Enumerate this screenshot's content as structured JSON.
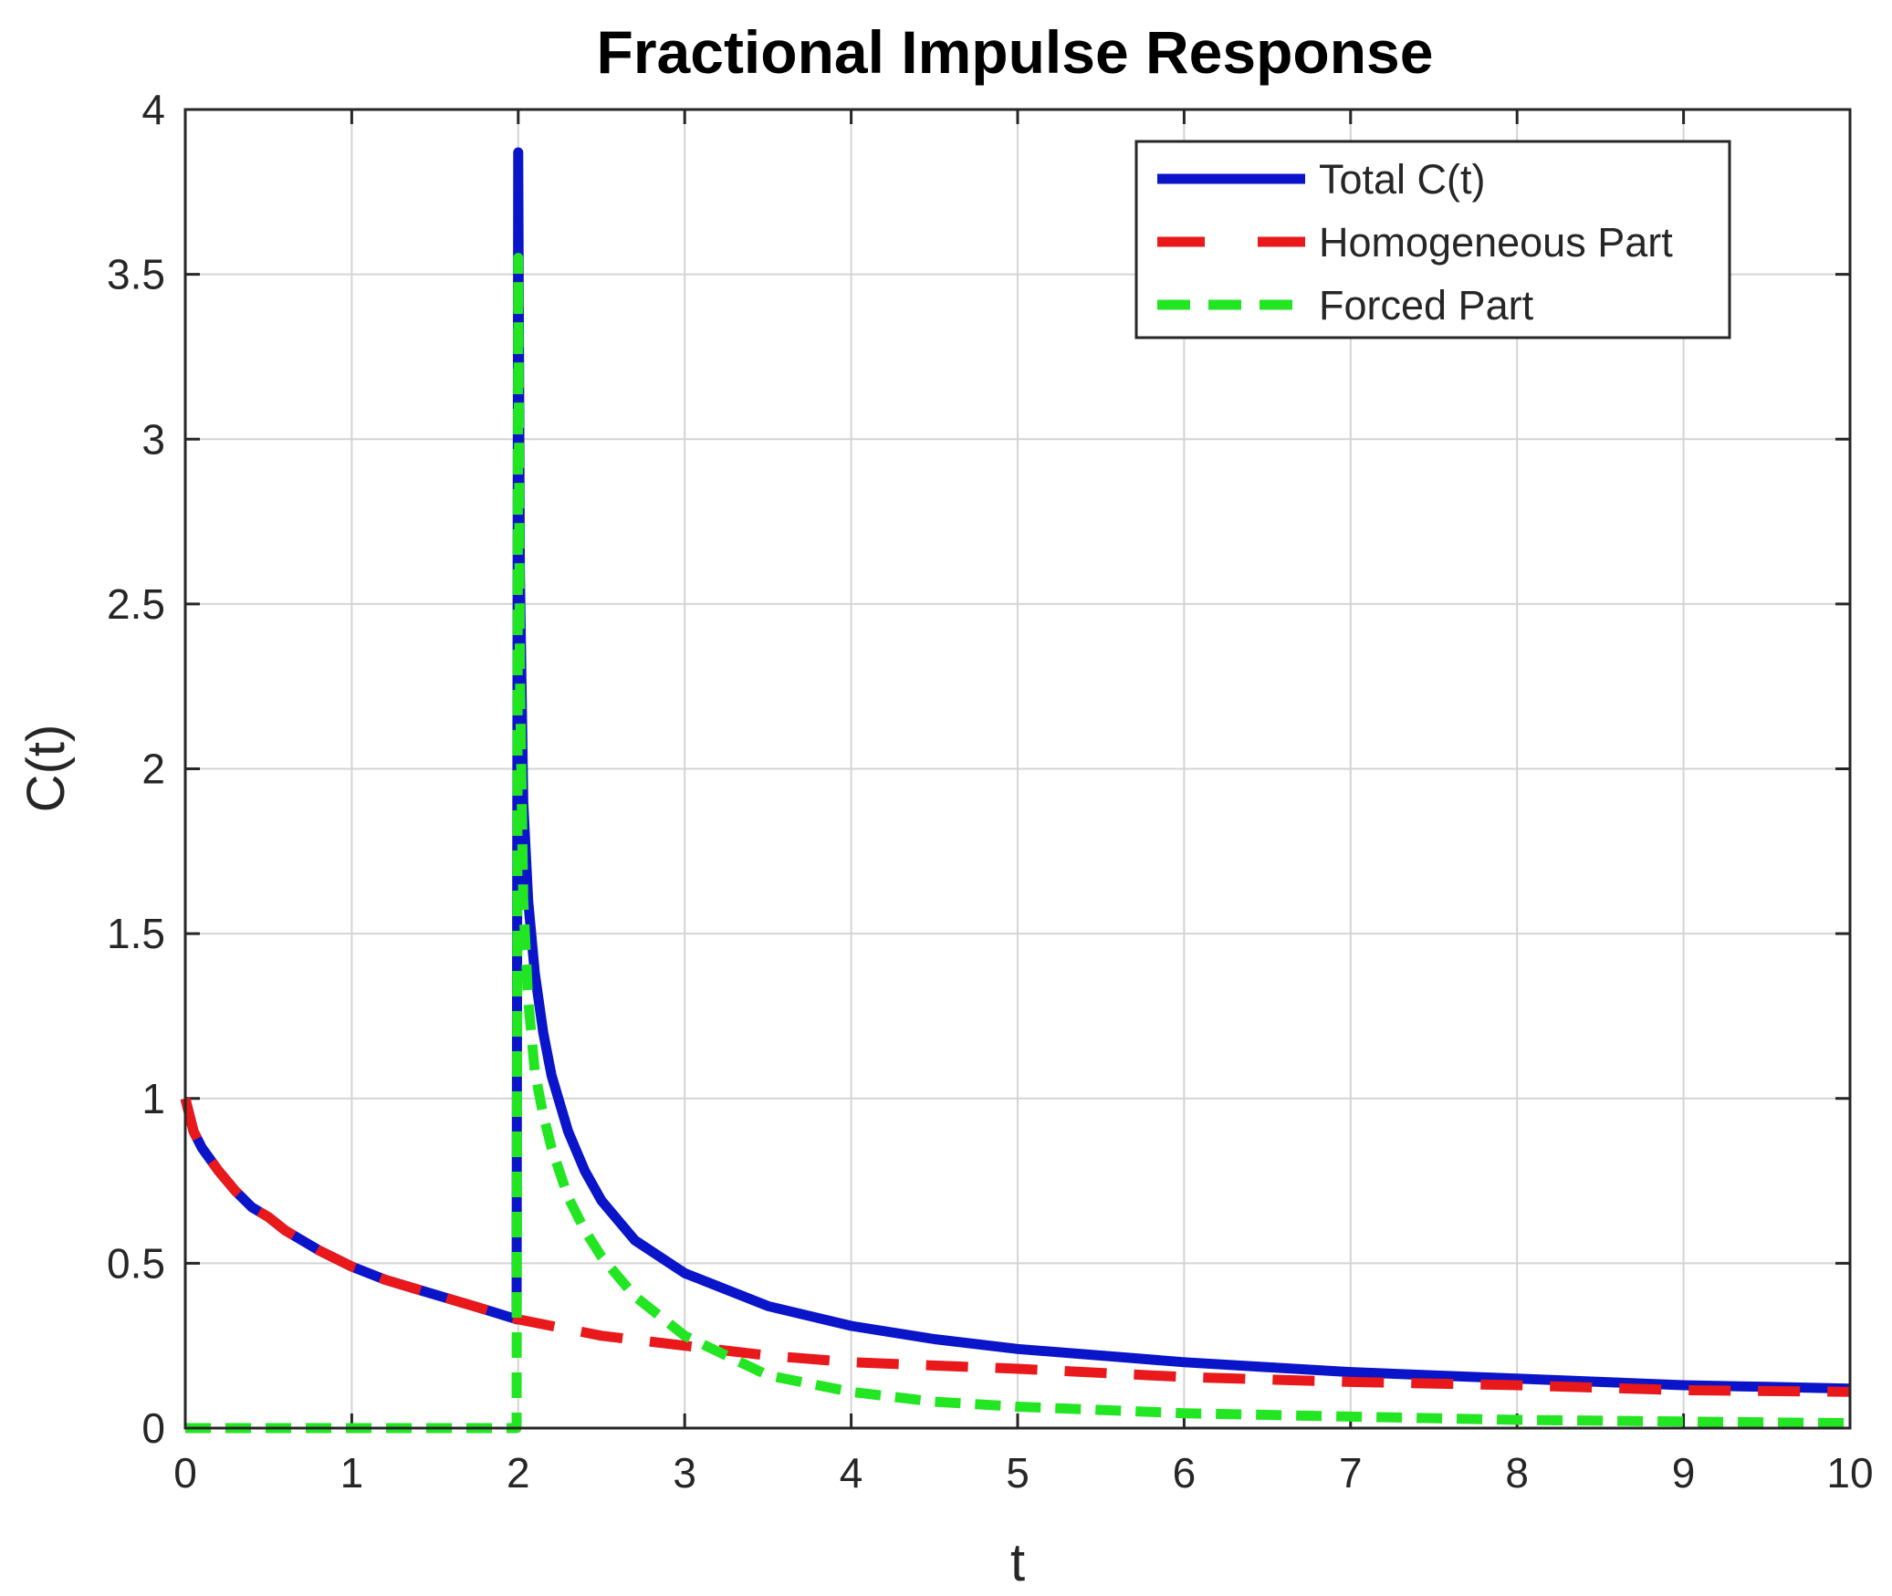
{
  "chart_data": {
    "type": "line",
    "title": "Fractional Impulse Response",
    "xlabel": "t",
    "ylabel": "C(t)",
    "xlim": [
      0,
      10
    ],
    "ylim": [
      0,
      4
    ],
    "xticks": [
      "0",
      "1",
      "2",
      "3",
      "4",
      "5",
      "6",
      "7",
      "8",
      "9",
      "10"
    ],
    "yticks": [
      "0",
      "0.5",
      "1",
      "1.5",
      "2",
      "2.5",
      "3",
      "3.5",
      "4"
    ],
    "grid": true,
    "legend_position": "top-right",
    "series": [
      {
        "name": "Total C(t)",
        "color": "#0a14c8",
        "style": "solid",
        "x": [
          0,
          0.05,
          0.1,
          0.2,
          0.3,
          0.4,
          0.5,
          0.6,
          0.8,
          1.0,
          1.2,
          1.4,
          1.6,
          1.8,
          1.99,
          2.0,
          2.01,
          2.03,
          2.06,
          2.1,
          2.15,
          2.2,
          2.3,
          2.4,
          2.5,
          2.7,
          3.0,
          3.5,
          4.0,
          4.5,
          5.0,
          5.5,
          6.0,
          6.5,
          7.0,
          7.5,
          8.0,
          8.5,
          9.0,
          9.5,
          10.0
        ],
        "y": [
          1.0,
          0.9,
          0.85,
          0.78,
          0.72,
          0.67,
          0.64,
          0.6,
          0.54,
          0.49,
          0.45,
          0.42,
          0.39,
          0.36,
          0.33,
          3.87,
          2.6,
          1.9,
          1.6,
          1.38,
          1.2,
          1.07,
          0.9,
          0.78,
          0.69,
          0.57,
          0.47,
          0.37,
          0.31,
          0.27,
          0.24,
          0.22,
          0.2,
          0.185,
          0.17,
          0.16,
          0.15,
          0.14,
          0.13,
          0.125,
          0.12
        ]
      },
      {
        "name": "Homogeneous Part",
        "color": "#e8181b",
        "style": "dashed",
        "x": [
          0,
          0.05,
          0.1,
          0.2,
          0.3,
          0.4,
          0.5,
          0.6,
          0.8,
          1.0,
          1.2,
          1.4,
          1.6,
          1.8,
          2.0,
          2.5,
          3.0,
          3.5,
          4.0,
          5.0,
          6.0,
          7.0,
          8.0,
          9.0,
          10.0
        ],
        "y": [
          1.0,
          0.9,
          0.85,
          0.78,
          0.72,
          0.67,
          0.64,
          0.6,
          0.54,
          0.49,
          0.45,
          0.42,
          0.39,
          0.36,
          0.33,
          0.28,
          0.25,
          0.22,
          0.2,
          0.18,
          0.155,
          0.14,
          0.13,
          0.115,
          0.11
        ]
      },
      {
        "name": "Forced Part",
        "color": "#22e622",
        "style": "dashed",
        "x": [
          0,
          1.0,
          1.99,
          2.0,
          2.01,
          2.03,
          2.06,
          2.1,
          2.15,
          2.2,
          2.3,
          2.4,
          2.5,
          2.7,
          3.0,
          3.5,
          4.0,
          4.5,
          5.0,
          6.0,
          7.0,
          8.0,
          9.0,
          10.0
        ],
        "y": [
          0,
          0,
          0,
          3.55,
          2.3,
          1.6,
          1.3,
          1.08,
          0.95,
          0.85,
          0.7,
          0.6,
          0.52,
          0.4,
          0.28,
          0.16,
          0.11,
          0.08,
          0.065,
          0.045,
          0.035,
          0.025,
          0.02,
          0.015
        ]
      }
    ]
  }
}
